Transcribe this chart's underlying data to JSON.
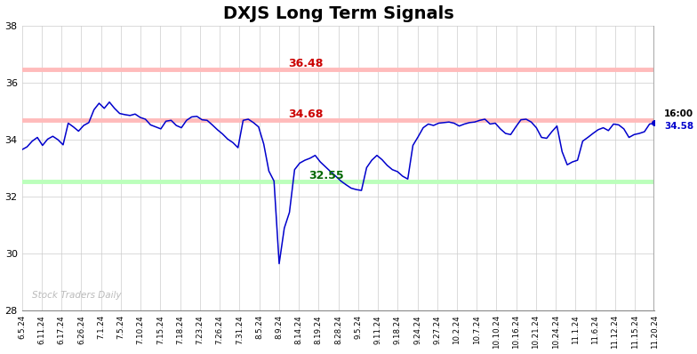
{
  "title": "DXJS Long Term Signals",
  "title_fontsize": 14,
  "background_color": "#ffffff",
  "line_color": "#0000cc",
  "grid_color": "#cccccc",
  "ylim": [
    28,
    38
  ],
  "yticks": [
    28,
    30,
    32,
    34,
    36,
    38
  ],
  "hline_upper": 36.48,
  "hline_middle": 34.68,
  "hline_lower": 32.55,
  "hline_upper_color": "#ffbbbb",
  "hline_middle_color": "#ffbbbb",
  "hline_lower_color": "#bbffbb",
  "label_upper": "36.48",
  "label_middle": "34.68",
  "label_lower": "32.55",
  "label_upper_color": "#cc0000",
  "label_middle_color": "#cc0000",
  "label_lower_color": "#006600",
  "watermark": "Stock Traders Daily",
  "end_label_time": "16:00",
  "end_label_price": "34.58",
  "xtick_labels": [
    "6.5.24",
    "6.11.24",
    "6.17.24",
    "6.26.24",
    "7.1.24",
    "7.5.24",
    "7.10.24",
    "7.15.24",
    "7.18.24",
    "7.23.24",
    "7.26.24",
    "7.31.24",
    "8.5.24",
    "8.9.24",
    "8.14.24",
    "8.19.24",
    "8.28.24",
    "9.5.24",
    "9.11.24",
    "9.18.24",
    "9.24.24",
    "9.27.24",
    "10.2.24",
    "10.7.24",
    "10.10.24",
    "10.16.24",
    "10.21.24",
    "10.24.24",
    "11.1.24",
    "11.6.24",
    "11.12.24",
    "11.15.24",
    "11.20.24"
  ],
  "prices": [
    33.65,
    33.75,
    33.95,
    34.08,
    33.8,
    34.02,
    34.12,
    34.0,
    33.82,
    34.58,
    34.45,
    34.3,
    34.5,
    34.6,
    35.05,
    35.28,
    35.1,
    35.32,
    35.1,
    34.92,
    34.88,
    34.85,
    34.9,
    34.78,
    34.72,
    34.52,
    34.45,
    34.38,
    34.65,
    34.68,
    34.5,
    34.42,
    34.68,
    34.8,
    34.82,
    34.7,
    34.68,
    34.52,
    34.35,
    34.2,
    34.02,
    33.9,
    33.72,
    34.68,
    34.72,
    34.6,
    34.45,
    33.85,
    32.9,
    32.55,
    29.65,
    30.9,
    31.45,
    32.95,
    33.18,
    33.28,
    33.35,
    33.45,
    33.22,
    33.05,
    32.88,
    32.72,
    32.55,
    32.42,
    32.3,
    32.25,
    32.22,
    33.02,
    33.28,
    33.45,
    33.3,
    33.1,
    32.95,
    32.88,
    32.72,
    32.62,
    33.8,
    34.1,
    34.42,
    34.55,
    34.5,
    34.58,
    34.6,
    34.62,
    34.58,
    34.48,
    34.55,
    34.6,
    34.62,
    34.68,
    34.72,
    34.55,
    34.58,
    34.38,
    34.22,
    34.18,
    34.45,
    34.7,
    34.72,
    34.62,
    34.42,
    34.08,
    34.05,
    34.28,
    34.48,
    33.58,
    33.12,
    33.22,
    33.28,
    33.95,
    34.08,
    34.22,
    34.35,
    34.42,
    34.32,
    34.55,
    34.52,
    34.38,
    34.08,
    34.18,
    34.22,
    34.28,
    34.55,
    34.58
  ]
}
